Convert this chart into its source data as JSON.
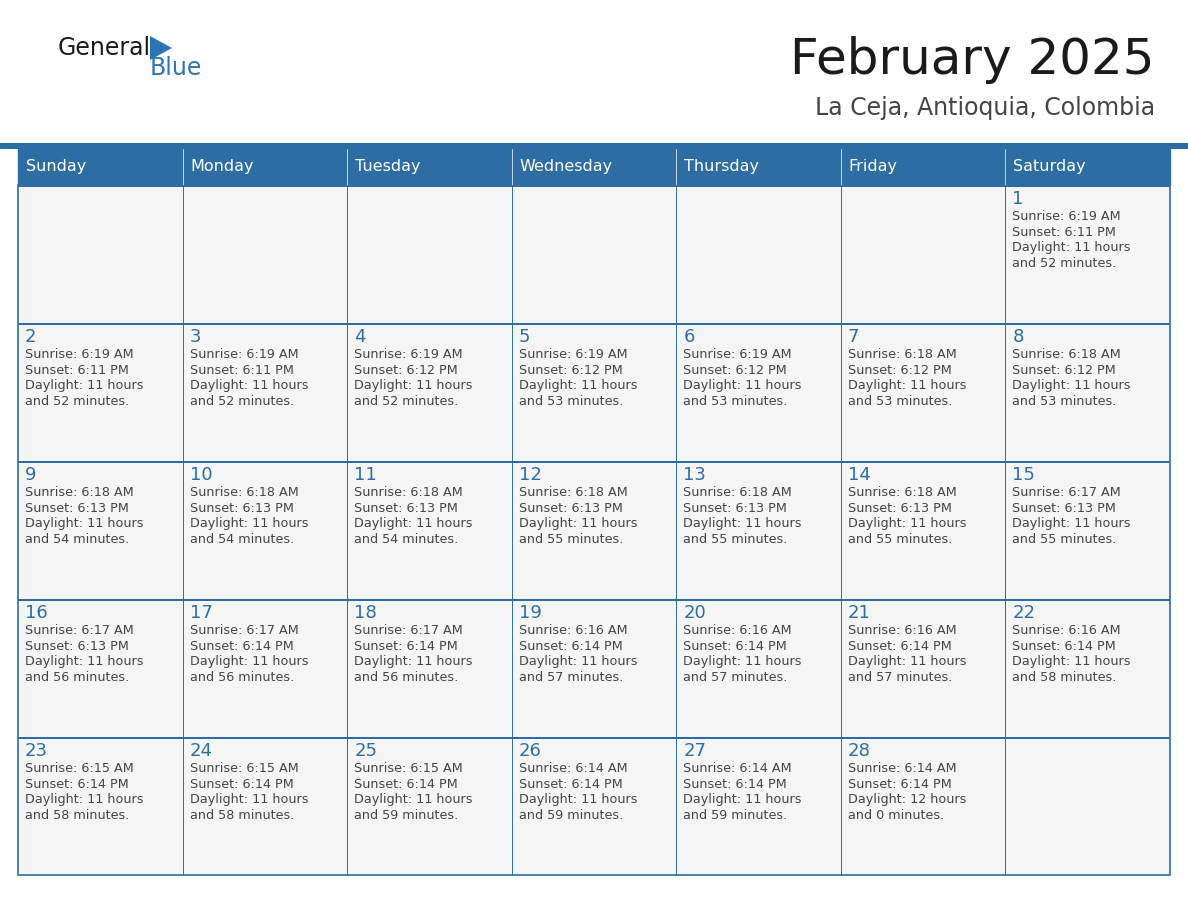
{
  "title": "February 2025",
  "subtitle": "La Ceja, Antioquia, Colombia",
  "days_of_week": [
    "Sunday",
    "Monday",
    "Tuesday",
    "Wednesday",
    "Thursday",
    "Friday",
    "Saturday"
  ],
  "header_bg": "#2E6DA4",
  "header_text": "#FFFFFF",
  "cell_bg": "#F5F5F5",
  "cell_bg_empty": "#F5F5F5",
  "border_color": "#2E6DA4",
  "day_number_color": "#2E6DA4",
  "text_color": "#444444",
  "logo_general_color": "#1a1a1a",
  "logo_blue_color": "#2E75B6",
  "calendar_data": [
    [
      null,
      null,
      null,
      null,
      null,
      null,
      {
        "day": 1,
        "sunrise": "6:19 AM",
        "sunset": "6:11 PM",
        "daylight_h": "11 hours",
        "daylight_m": "and 52 minutes."
      }
    ],
    [
      {
        "day": 2,
        "sunrise": "6:19 AM",
        "sunset": "6:11 PM",
        "daylight_h": "11 hours",
        "daylight_m": "and 52 minutes."
      },
      {
        "day": 3,
        "sunrise": "6:19 AM",
        "sunset": "6:11 PM",
        "daylight_h": "11 hours",
        "daylight_m": "and 52 minutes."
      },
      {
        "day": 4,
        "sunrise": "6:19 AM",
        "sunset": "6:12 PM",
        "daylight_h": "11 hours",
        "daylight_m": "and 52 minutes."
      },
      {
        "day": 5,
        "sunrise": "6:19 AM",
        "sunset": "6:12 PM",
        "daylight_h": "11 hours",
        "daylight_m": "and 53 minutes."
      },
      {
        "day": 6,
        "sunrise": "6:19 AM",
        "sunset": "6:12 PM",
        "daylight_h": "11 hours",
        "daylight_m": "and 53 minutes."
      },
      {
        "day": 7,
        "sunrise": "6:18 AM",
        "sunset": "6:12 PM",
        "daylight_h": "11 hours",
        "daylight_m": "and 53 minutes."
      },
      {
        "day": 8,
        "sunrise": "6:18 AM",
        "sunset": "6:12 PM",
        "daylight_h": "11 hours",
        "daylight_m": "and 53 minutes."
      }
    ],
    [
      {
        "day": 9,
        "sunrise": "6:18 AM",
        "sunset": "6:13 PM",
        "daylight_h": "11 hours",
        "daylight_m": "and 54 minutes."
      },
      {
        "day": 10,
        "sunrise": "6:18 AM",
        "sunset": "6:13 PM",
        "daylight_h": "11 hours",
        "daylight_m": "and 54 minutes."
      },
      {
        "day": 11,
        "sunrise": "6:18 AM",
        "sunset": "6:13 PM",
        "daylight_h": "11 hours",
        "daylight_m": "and 54 minutes."
      },
      {
        "day": 12,
        "sunrise": "6:18 AM",
        "sunset": "6:13 PM",
        "daylight_h": "11 hours",
        "daylight_m": "and 55 minutes."
      },
      {
        "day": 13,
        "sunrise": "6:18 AM",
        "sunset": "6:13 PM",
        "daylight_h": "11 hours",
        "daylight_m": "and 55 minutes."
      },
      {
        "day": 14,
        "sunrise": "6:18 AM",
        "sunset": "6:13 PM",
        "daylight_h": "11 hours",
        "daylight_m": "and 55 minutes."
      },
      {
        "day": 15,
        "sunrise": "6:17 AM",
        "sunset": "6:13 PM",
        "daylight_h": "11 hours",
        "daylight_m": "and 55 minutes."
      }
    ],
    [
      {
        "day": 16,
        "sunrise": "6:17 AM",
        "sunset": "6:13 PM",
        "daylight_h": "11 hours",
        "daylight_m": "and 56 minutes."
      },
      {
        "day": 17,
        "sunrise": "6:17 AM",
        "sunset": "6:14 PM",
        "daylight_h": "11 hours",
        "daylight_m": "and 56 minutes."
      },
      {
        "day": 18,
        "sunrise": "6:17 AM",
        "sunset": "6:14 PM",
        "daylight_h": "11 hours",
        "daylight_m": "and 56 minutes."
      },
      {
        "day": 19,
        "sunrise": "6:16 AM",
        "sunset": "6:14 PM",
        "daylight_h": "11 hours",
        "daylight_m": "and 57 minutes."
      },
      {
        "day": 20,
        "sunrise": "6:16 AM",
        "sunset": "6:14 PM",
        "daylight_h": "11 hours",
        "daylight_m": "and 57 minutes."
      },
      {
        "day": 21,
        "sunrise": "6:16 AM",
        "sunset": "6:14 PM",
        "daylight_h": "11 hours",
        "daylight_m": "and 57 minutes."
      },
      {
        "day": 22,
        "sunrise": "6:16 AM",
        "sunset": "6:14 PM",
        "daylight_h": "11 hours",
        "daylight_m": "and 58 minutes."
      }
    ],
    [
      {
        "day": 23,
        "sunrise": "6:15 AM",
        "sunset": "6:14 PM",
        "daylight_h": "11 hours",
        "daylight_m": "and 58 minutes."
      },
      {
        "day": 24,
        "sunrise": "6:15 AM",
        "sunset": "6:14 PM",
        "daylight_h": "11 hours",
        "daylight_m": "and 58 minutes."
      },
      {
        "day": 25,
        "sunrise": "6:15 AM",
        "sunset": "6:14 PM",
        "daylight_h": "11 hours",
        "daylight_m": "and 59 minutes."
      },
      {
        "day": 26,
        "sunrise": "6:14 AM",
        "sunset": "6:14 PM",
        "daylight_h": "11 hours",
        "daylight_m": "and 59 minutes."
      },
      {
        "day": 27,
        "sunrise": "6:14 AM",
        "sunset": "6:14 PM",
        "daylight_h": "11 hours",
        "daylight_m": "and 59 minutes."
      },
      {
        "day": 28,
        "sunrise": "6:14 AM",
        "sunset": "6:14 PM",
        "daylight_h": "12 hours",
        "daylight_m": "and 0 minutes."
      },
      null
    ]
  ],
  "fig_width": 11.88,
  "fig_height": 9.18,
  "dpi": 100
}
